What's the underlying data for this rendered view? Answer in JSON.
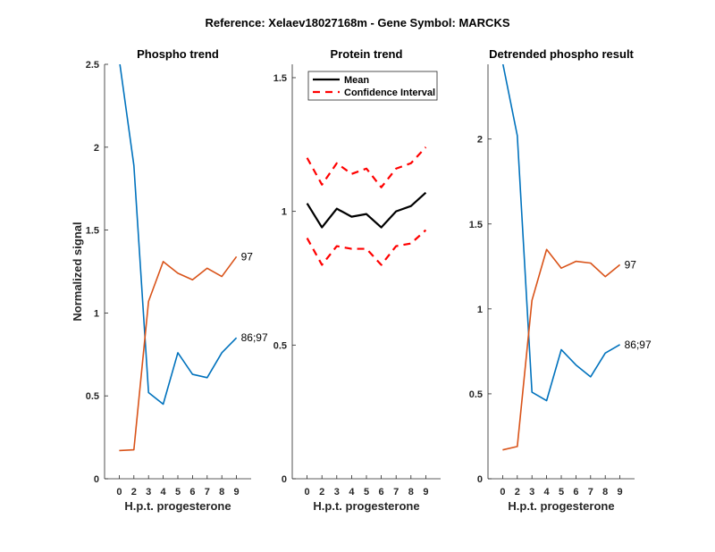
{
  "suptitle": "Reference:  Xelaev18027168m - Gene Symbol:  MARCKS",
  "colors": {
    "blue": "#0072BD",
    "orange": "#D95319",
    "mean": "#000000",
    "ci": "#FF0000",
    "axis": "#262626"
  },
  "chart_data": [
    {
      "type": "line",
      "title": "Phospho trend",
      "xlabel": "H.p.t. progesterone",
      "ylabel": "Normalized signal",
      "categories": [
        "0",
        "2",
        "3",
        "4",
        "5",
        "6",
        "7",
        "8",
        "9"
      ],
      "ylim": [
        0,
        2.5
      ],
      "yticks": [
        0,
        0.5,
        1,
        1.5,
        2,
        2.5
      ],
      "ytick_labels": [
        "0",
        "0.5",
        "1",
        "1.5",
        "2",
        "2.5"
      ],
      "series": [
        {
          "name": "86;97",
          "color": "blue",
          "values": [
            2.53,
            1.89,
            0.52,
            0.45,
            0.76,
            0.63,
            0.61,
            0.76,
            0.85
          ]
        },
        {
          "name": "97",
          "color": "orange",
          "values": [
            0.17,
            0.175,
            1.07,
            1.31,
            1.24,
            1.2,
            1.27,
            1.22,
            1.34
          ]
        }
      ]
    },
    {
      "type": "line",
      "title": "Protein trend",
      "xlabel": "H.p.t. progesterone",
      "ylabel": "",
      "categories": [
        "0",
        "2",
        "3",
        "4",
        "5",
        "6",
        "7",
        "8",
        "9"
      ],
      "ylim": [
        0,
        1.55
      ],
      "yticks": [
        0,
        0.5,
        1,
        1.5
      ],
      "ytick_labels": [
        "0",
        "0.5",
        "1",
        "1.5"
      ],
      "legend": {
        "placement": "top-left",
        "entries": [
          "Mean",
          "Confidence Interval"
        ]
      },
      "series": [
        {
          "name": "Mean",
          "color": "mean",
          "style": "solid",
          "values": [
            1.03,
            0.94,
            1.01,
            0.98,
            0.99,
            0.94,
            1.0,
            1.02,
            1.07
          ]
        },
        {
          "name": "Confidence Interval upper",
          "color": "ci",
          "style": "dashed",
          "values": [
            1.2,
            1.1,
            1.18,
            1.14,
            1.16,
            1.09,
            1.16,
            1.18,
            1.24
          ]
        },
        {
          "name": "Confidence Interval lower",
          "color": "ci",
          "style": "dashed",
          "values": [
            0.9,
            0.8,
            0.87,
            0.86,
            0.86,
            0.8,
            0.87,
            0.88,
            0.93
          ]
        }
      ]
    },
    {
      "type": "line",
      "title": "Detrended phospho result",
      "xlabel": "H.p.t. progesterone",
      "ylabel": "",
      "categories": [
        "0",
        "2",
        "3",
        "4",
        "5",
        "6",
        "7",
        "8",
        "9"
      ],
      "ylim": [
        0,
        2.44
      ],
      "yticks": [
        0,
        0.5,
        1,
        1.5,
        2
      ],
      "ytick_labels": [
        "0",
        "0.5",
        "1",
        "1.5",
        "2"
      ],
      "series": [
        {
          "name": "86;97",
          "color": "blue",
          "values": [
            2.45,
            2.02,
            0.51,
            0.46,
            0.76,
            0.67,
            0.6,
            0.74,
            0.79
          ]
        },
        {
          "name": "97",
          "color": "orange",
          "values": [
            0.17,
            0.19,
            1.05,
            1.35,
            1.24,
            1.28,
            1.27,
            1.19,
            1.26
          ]
        }
      ]
    }
  ]
}
